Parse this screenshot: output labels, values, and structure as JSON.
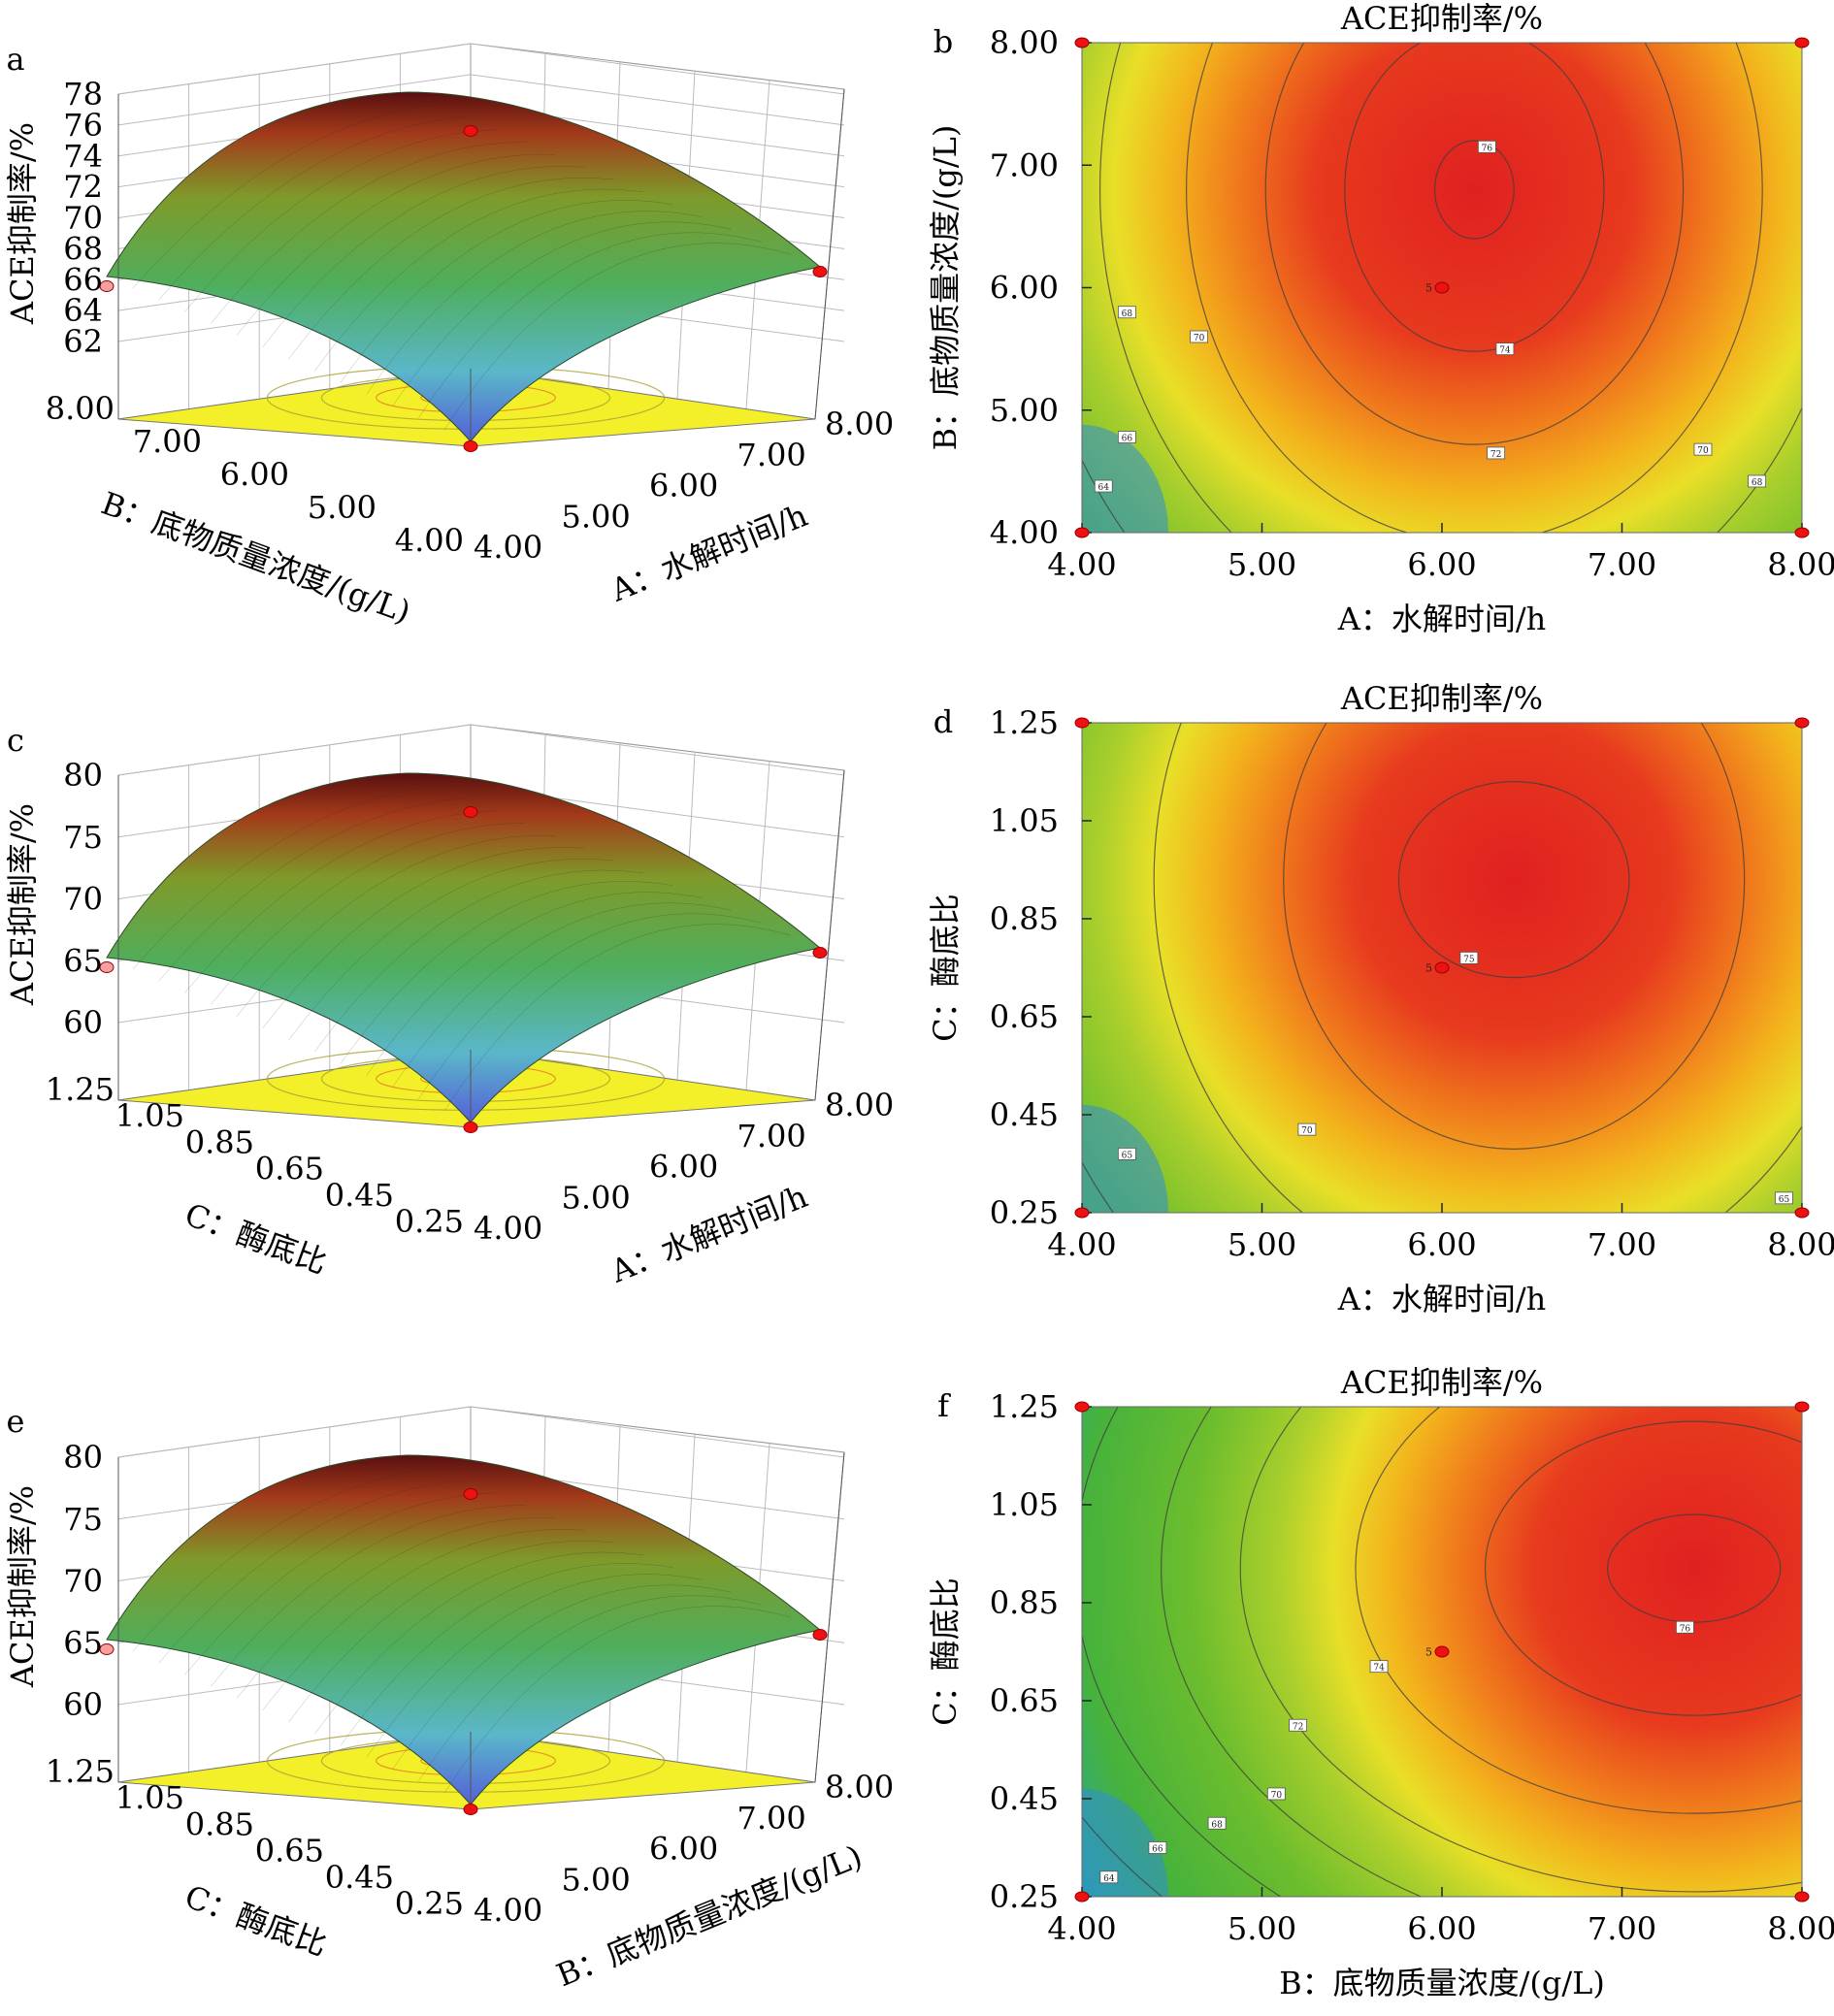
{
  "chart_data": [
    {
      "panel": "a",
      "type": "surface3d",
      "zlabel": "ACE抑制率/%",
      "xlabel": "A：水解时间/h",
      "ylabel": "B：底物质量浓度/(g/L)",
      "z_ticks": [
        "62",
        "64",
        "66",
        "68",
        "70",
        "72",
        "74",
        "76",
        "78"
      ],
      "x_ticks": [
        "4.00",
        "5.00",
        "6.00",
        "7.00",
        "8.00"
      ],
      "y_ticks": [
        "4.00",
        "5.00",
        "6.00",
        "7.00",
        "8.00"
      ],
      "xlim": [
        4,
        8
      ],
      "ylim": [
        4,
        8
      ],
      "zlim": [
        62,
        78
      ]
    },
    {
      "panel": "b",
      "type": "contour",
      "title": "ACE抑制率/%",
      "xlabel": "A：水解时间/h",
      "ylabel": "B：底物质量浓度/(g/L)",
      "x_ticks": [
        "4.00",
        "5.00",
        "6.00",
        "7.00",
        "8.00"
      ],
      "y_ticks": [
        "4.00",
        "5.00",
        "6.00",
        "7.00",
        "8.00"
      ],
      "xlim": [
        4,
        8
      ],
      "ylim": [
        4,
        8
      ],
      "center_point": {
        "x": 6.0,
        "y": 6.0,
        "label": "5"
      },
      "contour_labels": [
        {
          "value": 76,
          "x": 6.25,
          "y": 7.15
        },
        {
          "value": 74,
          "x": 6.35,
          "y": 5.5
        },
        {
          "value": 72,
          "x": 6.3,
          "y": 4.65
        },
        {
          "value": 70,
          "x": 7.45,
          "y": 4.68
        },
        {
          "value": 68,
          "x": 7.75,
          "y": 4.42
        },
        {
          "value": 68,
          "x": 4.25,
          "y": 5.8
        },
        {
          "value": 70,
          "x": 4.65,
          "y": 5.6
        },
        {
          "value": 66,
          "x": 4.25,
          "y": 4.78
        },
        {
          "value": 64,
          "x": 4.12,
          "y": 4.38
        }
      ]
    },
    {
      "panel": "c",
      "type": "surface3d",
      "zlabel": "ACE抑制率/%",
      "xlabel": "A：水解时间/h",
      "ylabel": "C：酶底比",
      "z_ticks": [
        "60",
        "65",
        "70",
        "75",
        "80"
      ],
      "x_ticks": [
        "4.00",
        "5.00",
        "6.00",
        "7.00",
        "8.00"
      ],
      "y_ticks": [
        "0.25",
        "0.45",
        "0.65",
        "0.85",
        "1.05",
        "1.25"
      ],
      "xlim": [
        4,
        8
      ],
      "ylim": [
        0.25,
        1.25
      ],
      "zlim": [
        60,
        80
      ]
    },
    {
      "panel": "d",
      "type": "contour",
      "title": "ACE抑制率/%",
      "xlabel": "A：水解时间/h",
      "ylabel": "C：酶底比",
      "x_ticks": [
        "4.00",
        "5.00",
        "6.00",
        "7.00",
        "8.00"
      ],
      "y_ticks": [
        "0.25",
        "0.45",
        "0.65",
        "0.85",
        "1.05",
        "1.25"
      ],
      "xlim": [
        4,
        8
      ],
      "ylim": [
        0.25,
        1.25
      ],
      "center_point": {
        "x": 6.0,
        "y": 0.75,
        "label": "5"
      },
      "contour_labels": [
        {
          "value": 75,
          "x": 6.15,
          "y": 0.77
        },
        {
          "value": 70,
          "x": 5.25,
          "y": 0.42
        },
        {
          "value": 65,
          "x": 4.25,
          "y": 0.37
        },
        {
          "value": 65,
          "x": 7.9,
          "y": 0.28
        }
      ]
    },
    {
      "panel": "e",
      "type": "surface3d",
      "zlabel": "ACE抑制率/%",
      "xlabel": "B：底物质量浓度/(g/L)",
      "ylabel": "C：酶底比",
      "z_ticks": [
        "60",
        "65",
        "70",
        "75",
        "80"
      ],
      "x_ticks": [
        "4.00",
        "5.00",
        "6.00",
        "7.00",
        "8.00"
      ],
      "y_ticks": [
        "0.25",
        "0.45",
        "0.65",
        "0.85",
        "1.05",
        "1.25"
      ],
      "xlim": [
        4,
        8
      ],
      "ylim": [
        0.25,
        1.25
      ],
      "zlim": [
        60,
        80
      ]
    },
    {
      "panel": "f",
      "type": "contour",
      "title": "ACE抑制率/%",
      "xlabel": "B：底物质量浓度/(g/L)",
      "ylabel": "C：酶底比",
      "x_ticks": [
        "4.00",
        "5.00",
        "6.00",
        "7.00",
        "8.00"
      ],
      "y_ticks": [
        "0.25",
        "0.45",
        "0.65",
        "0.85",
        "1.05",
        "1.25"
      ],
      "xlim": [
        4,
        8
      ],
      "ylim": [
        0.25,
        1.25
      ],
      "center_point": {
        "x": 6.0,
        "y": 0.75,
        "label": "5"
      },
      "contour_labels": [
        {
          "value": 76,
          "x": 7.35,
          "y": 0.8
        },
        {
          "value": 74,
          "x": 5.65,
          "y": 0.72
        },
        {
          "value": 72,
          "x": 5.2,
          "y": 0.6
        },
        {
          "value": 70,
          "x": 5.08,
          "y": 0.46
        },
        {
          "value": 68,
          "x": 4.75,
          "y": 0.4
        },
        {
          "value": 66,
          "x": 4.42,
          "y": 0.35
        },
        {
          "value": 64,
          "x": 4.15,
          "y": 0.29
        }
      ]
    }
  ]
}
